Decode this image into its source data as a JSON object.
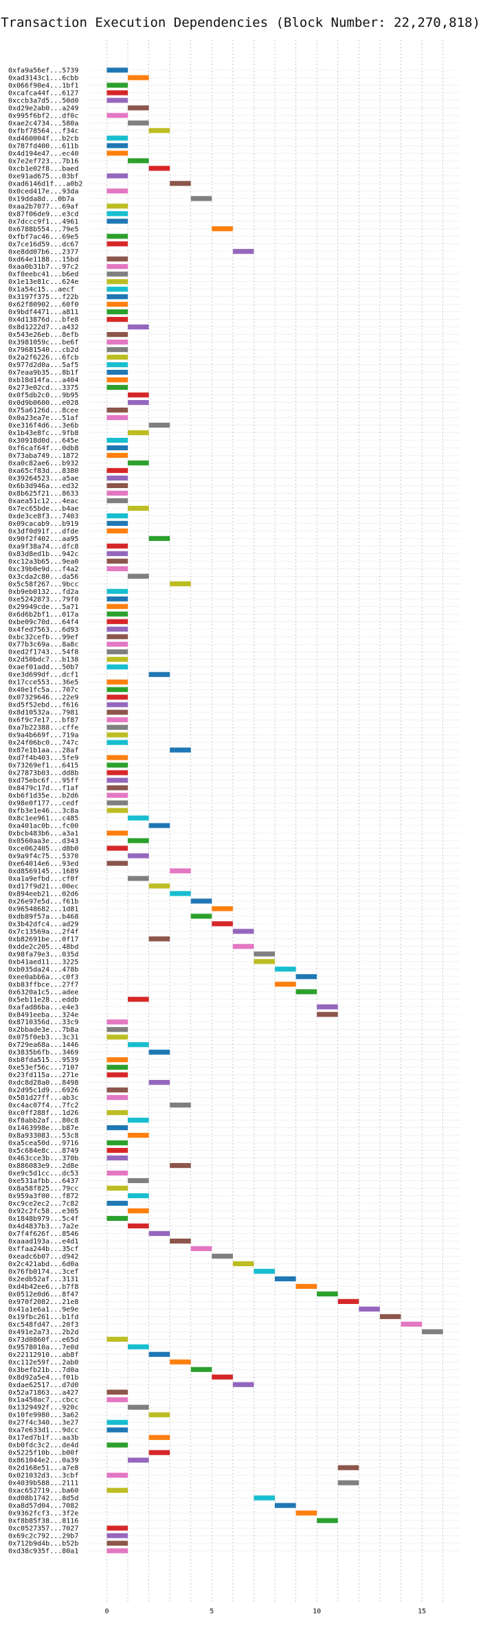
{
  "chart_data": {
    "type": "gantt",
    "title": "Transaction Execution Dependencies (Block Number: 22,270,818)",
    "xlabel": "",
    "ylabel": "",
    "xlim": [
      -0.8,
      16.8
    ],
    "xticks": [
      0,
      5,
      10,
      15
    ],
    "grid": true,
    "palette": [
      "#1f77b4",
      "#ff7f0e",
      "#2ca02c",
      "#d62728",
      "#9467bd",
      "#8c564b",
      "#e377c2",
      "#7f7f7f",
      "#bcbd22",
      "#17becf"
    ],
    "transactions": [
      {
        "tx": "0xfa9a56ef...5739",
        "start": 0
      },
      {
        "tx": "0xad3143c1...6cbb",
        "start": 1
      },
      {
        "tx": "0x066f90e4...1bf1",
        "start": 0
      },
      {
        "tx": "0xcafca44f...6127",
        "start": 0
      },
      {
        "tx": "0xccb3a7d5...50d0",
        "start": 0
      },
      {
        "tx": "0xd29e2ab0...a249",
        "start": 1
      },
      {
        "tx": "0x995f6bf2...df0c",
        "start": 0
      },
      {
        "tx": "0xae2c4734...580a",
        "start": 1
      },
      {
        "tx": "0xfbf78564...f34c",
        "start": 2
      },
      {
        "tx": "0xd460004f...b2cb",
        "start": 0
      },
      {
        "tx": "0x787fd400...611b",
        "start": 0
      },
      {
        "tx": "0x4d194e47...ec40",
        "start": 0
      },
      {
        "tx": "0x7e2ef723...7b16",
        "start": 1
      },
      {
        "tx": "0xcb1e02f8...baed",
        "start": 2
      },
      {
        "tx": "0xe91ad675...03bf",
        "start": 0
      },
      {
        "tx": "0xad6146d1f...a0b2",
        "start": 3
      },
      {
        "tx": "0x0ced417e...93da",
        "start": 0
      },
      {
        "tx": "0x19dda8d...0b7a",
        "start": 4
      },
      {
        "tx": "0xaa2b7077...69af",
        "start": 0
      },
      {
        "tx": "0x87f06de9...e3cd",
        "start": 0
      },
      {
        "tx": "0x7dccc9f1...4961",
        "start": 0
      },
      {
        "tx": "0x6788b554...79e5",
        "start": 5
      },
      {
        "tx": "0xfbf7ac46...69e5",
        "start": 0
      },
      {
        "tx": "0x7ce16d59...dc67",
        "start": 0
      },
      {
        "tx": "0xe8dd07b6...2377",
        "start": 6
      },
      {
        "tx": "0xd64e1188...15bd",
        "start": 0
      },
      {
        "tx": "0xaa0b31b7...97c2",
        "start": 0
      },
      {
        "tx": "0xf0eebc41...b6ed",
        "start": 0
      },
      {
        "tx": "0x1e13e81c...624e",
        "start": 0
      },
      {
        "tx": "0x1a54c15...aecf",
        "start": 0
      },
      {
        "tx": "0x3197f375...f22b",
        "start": 0
      },
      {
        "tx": "0x62f80902...60f0",
        "start": 0
      },
      {
        "tx": "0x9bdf4471...a811",
        "start": 0
      },
      {
        "tx": "0x4d13876d...bfe8",
        "start": 0
      },
      {
        "tx": "0x8d1222d7...a432",
        "start": 1
      },
      {
        "tx": "0x543e26eb...8efb",
        "start": 0
      },
      {
        "tx": "0x3981059c...be6f",
        "start": 0
      },
      {
        "tx": "0x79681540...cb2d",
        "start": 0
      },
      {
        "tx": "0x2a2f6226...6fcb",
        "start": 0
      },
      {
        "tx": "0x977d2d0a...5af5",
        "start": 0
      },
      {
        "tx": "0x7eaa9b35...8b1f",
        "start": 0
      },
      {
        "tx": "0xb18d14fa...a404",
        "start": 0
      },
      {
        "tx": "0x273e02cd...3375",
        "start": 0
      },
      {
        "tx": "0x0f5db2c0...9b95",
        "start": 1
      },
      {
        "tx": "0x0d9b0600...e028",
        "start": 1
      },
      {
        "tx": "0x75a6126d...8cee",
        "start": 0
      },
      {
        "tx": "0x0a23ea7e...51af",
        "start": 0
      },
      {
        "tx": "0xe316f4d6...3e6b",
        "start": 2
      },
      {
        "tx": "0x1b43e8fc...9fb8",
        "start": 1
      },
      {
        "tx": "0x30918d0d...645e",
        "start": 0
      },
      {
        "tx": "0xf6caf64f...0db8",
        "start": 0
      },
      {
        "tx": "0x73aba749...1872",
        "start": 0
      },
      {
        "tx": "0xa0c82ae6...b932",
        "start": 1
      },
      {
        "tx": "0xa65cf83d...8380",
        "start": 0
      },
      {
        "tx": "0x39264523...a5ae",
        "start": 0
      },
      {
        "tx": "0x6b3d946a...ed32",
        "start": 0
      },
      {
        "tx": "0x8b625f21...8633",
        "start": 0
      },
      {
        "tx": "0xaea51c12...4eac",
        "start": 0
      },
      {
        "tx": "0x7ec65bde...b4ae",
        "start": 1
      },
      {
        "tx": "0xde3ce8f3...7403",
        "start": 0
      },
      {
        "tx": "0x09cacab9...b919",
        "start": 0
      },
      {
        "tx": "0x3df0d91f...dfde",
        "start": 0
      },
      {
        "tx": "0x90f2f402...aa95",
        "start": 2
      },
      {
        "tx": "0xa9f38a74...dfc8",
        "start": 0
      },
      {
        "tx": "0x83d8ed1b...942c",
        "start": 0
      },
      {
        "tx": "0xc12a3b65...9ea0",
        "start": 0
      },
      {
        "tx": "0xc39b0e9d...f4a2",
        "start": 0
      },
      {
        "tx": "0x3cda2c80...da56",
        "start": 1
      },
      {
        "tx": "0x5c58f267...9bcc",
        "start": 3
      },
      {
        "tx": "0xb9eb0132...fd2a",
        "start": 0
      },
      {
        "tx": "0xe5242873...79f0",
        "start": 0
      },
      {
        "tx": "0x29949cde...5a71",
        "start": 0
      },
      {
        "tx": "0x6d6b2bf1...017a",
        "start": 0
      },
      {
        "tx": "0xbe09c70d...64f4",
        "start": 0
      },
      {
        "tx": "0x4fed7563...6d93",
        "start": 0
      },
      {
        "tx": "0xbc32cefb...99ef",
        "start": 0
      },
      {
        "tx": "0x77b3c69a...8a8c",
        "start": 0
      },
      {
        "tx": "0xed2f1743...54f8",
        "start": 0
      },
      {
        "tx": "0x2d50bdc7...b138",
        "start": 0
      },
      {
        "tx": "0xaef01add...50b7",
        "start": 0
      },
      {
        "tx": "0xe3d699df...dcf1",
        "start": 2
      },
      {
        "tx": "0x17cce553...36e5",
        "start": 0
      },
      {
        "tx": "0x40e1fc5a...707c",
        "start": 0
      },
      {
        "tx": "0x07329646...22e9",
        "start": 0
      },
      {
        "tx": "0xd5f52ebd...f616",
        "start": 0
      },
      {
        "tx": "0x8d10532a...7981",
        "start": 0
      },
      {
        "tx": "0x6f9c7e17...bf87",
        "start": 0
      },
      {
        "tx": "0xa7b22388...cffe",
        "start": 0
      },
      {
        "tx": "0x9a4b669f...719a",
        "start": 0
      },
      {
        "tx": "0x24f06bc0...747c",
        "start": 0
      },
      {
        "tx": "0x87e1b1aa...28af",
        "start": 3
      },
      {
        "tx": "0xd7f4b403...5fe9",
        "start": 0
      },
      {
        "tx": "0x73269ef1...6415",
        "start": 0
      },
      {
        "tx": "0x27873b03...dd8b",
        "start": 0
      },
      {
        "tx": "0xd75ebc6f...95ff",
        "start": 0
      },
      {
        "tx": "0x8479c17d...f1af",
        "start": 0
      },
      {
        "tx": "0xb6f1d35e...b2d6",
        "start": 0
      },
      {
        "tx": "0x98e0f177...cedf",
        "start": 0
      },
      {
        "tx": "0xfb3e1e46...3c8a",
        "start": 0
      },
      {
        "tx": "0x8c1ee961...c485",
        "start": 1
      },
      {
        "tx": "0xa401ac0b...fc00",
        "start": 2
      },
      {
        "tx": "0xbcb483b6...a3a1",
        "start": 0
      },
      {
        "tx": "0x0560aa3e...d343",
        "start": 1
      },
      {
        "tx": "0xce062405...d8b0",
        "start": 0
      },
      {
        "tx": "0x9a9f4c75...5370",
        "start": 1
      },
      {
        "tx": "0xe64014e6...93ed",
        "start": 0
      },
      {
        "tx": "0xd8569145...1689",
        "start": 3
      },
      {
        "tx": "0xa1a9efbd...cf0f",
        "start": 1
      },
      {
        "tx": "0xd17f9d21...00ec",
        "start": 2
      },
      {
        "tx": "0x894eeb21...02d6",
        "start": 3
      },
      {
        "tx": "0x26e97e5d...f61b",
        "start": 4
      },
      {
        "tx": "0x96548682...1d81",
        "start": 5
      },
      {
        "tx": "0xdb89f57a...b468",
        "start": 4
      },
      {
        "tx": "0x3b42dfc4...ad29",
        "start": 5
      },
      {
        "tx": "0x7c13569a...2f4f",
        "start": 6
      },
      {
        "tx": "0xb82691be...0f17",
        "start": 2
      },
      {
        "tx": "0xdde2c205...48bd",
        "start": 6
      },
      {
        "tx": "0x98fa79e3...035d",
        "start": 7
      },
      {
        "tx": "0xb41aed11...3225",
        "start": 7
      },
      {
        "tx": "0xb035da24...478b",
        "start": 8
      },
      {
        "tx": "0xee0abb6a...c0f3",
        "start": 9
      },
      {
        "tx": "0xb83ffbce...27f7",
        "start": 8
      },
      {
        "tx": "0x6320a1c5...adee",
        "start": 9
      },
      {
        "tx": "0x5eb11e28...eddb",
        "start": 1
      },
      {
        "tx": "0xafad86ba...e4e3",
        "start": 10
      },
      {
        "tx": "0x8491eeba...324e",
        "start": 10
      },
      {
        "tx": "0x8710356d...33c9",
        "start": 0
      },
      {
        "tx": "0x2bbade3e...7b8a",
        "start": 0
      },
      {
        "tx": "0x075f0eb3...3c31",
        "start": 0
      },
      {
        "tx": "0x729ea68a...1446",
        "start": 1
      },
      {
        "tx": "0x3835b6fb...3469",
        "start": 2
      },
      {
        "tx": "0xb8fda515...9539",
        "start": 0
      },
      {
        "tx": "0xe53ef56c...7107",
        "start": 0
      },
      {
        "tx": "0x23fd115a...271e",
        "start": 0
      },
      {
        "tx": "0xdc8d28a0...8498",
        "start": 2
      },
      {
        "tx": "0x2d95c1d9...6926",
        "start": 0
      },
      {
        "tx": "0x581d27ff...ab3c",
        "start": 0
      },
      {
        "tx": "0xc4ac07f4...7fc2",
        "start": 3
      },
      {
        "tx": "0xc0ff288f...1d26",
        "start": 0
      },
      {
        "tx": "0xf8abb2af...80c8",
        "start": 1
      },
      {
        "tx": "0x1463998e...b87e",
        "start": 0
      },
      {
        "tx": "0x8a933083...53c8",
        "start": 1
      },
      {
        "tx": "0xa5cea50d...9716",
        "start": 0
      },
      {
        "tx": "0x5c684e8c...8749",
        "start": 0
      },
      {
        "tx": "0x463cce3b...370b",
        "start": 0
      },
      {
        "tx": "0x886083e9...2d8e",
        "start": 3
      },
      {
        "tx": "0xe9c5d1cc...dc53",
        "start": 0
      },
      {
        "tx": "0xe531afbb...6437",
        "start": 1
      },
      {
        "tx": "0x8a58f825...79cc",
        "start": 0
      },
      {
        "tx": "0x959a3f00...f872",
        "start": 1
      },
      {
        "tx": "0xc9ce2ec2...7c82",
        "start": 0
      },
      {
        "tx": "0x92c2fc58...e305",
        "start": 1
      },
      {
        "tx": "0x1848b979...5c4f",
        "start": 0
      },
      {
        "tx": "0x4d4837b3...7a2e",
        "start": 1
      },
      {
        "tx": "0x7f4f626f...8546",
        "start": 2
      },
      {
        "tx": "0xaaad193a...e4d1",
        "start": 3
      },
      {
        "tx": "0xffaa244b...35cf",
        "start": 4
      },
      {
        "tx": "0xeadc6b07...d942",
        "start": 5
      },
      {
        "tx": "0x2c421abd...6d0a",
        "start": 6
      },
      {
        "tx": "0x76fb0174...3cef",
        "start": 7
      },
      {
        "tx": "0x2edb52af...3131",
        "start": 8
      },
      {
        "tx": "0xd4b42ee6...b7f8",
        "start": 9
      },
      {
        "tx": "0x0512e0d6...8f47",
        "start": 10
      },
      {
        "tx": "0x970f2082...21e8",
        "start": 11
      },
      {
        "tx": "0x41a1e6a1...9e9e",
        "start": 12
      },
      {
        "tx": "0x19fbc261...b1fd",
        "start": 13
      },
      {
        "tx": "0xc548fd47...20f3",
        "start": 14
      },
      {
        "tx": "0x491e2a73...2b2d",
        "start": 15
      },
      {
        "tx": "0x73d0860f...e65d",
        "start": 0
      },
      {
        "tx": "0x9578010a...7e0d",
        "start": 1
      },
      {
        "tx": "0x22112910...ab8f",
        "start": 2
      },
      {
        "tx": "0xc112e59f...2ab0",
        "start": 3
      },
      {
        "tx": "0x3befb21b...7d0a",
        "start": 4
      },
      {
        "tx": "0x8d92a5e4...f01b",
        "start": 5
      },
      {
        "tx": "0xdae62517...d7d0",
        "start": 6
      },
      {
        "tx": "0x52a71863...a427",
        "start": 0
      },
      {
        "tx": "0x1a450ac7...cbcc",
        "start": 0
      },
      {
        "tx": "0x1329492f...920c",
        "start": 1
      },
      {
        "tx": "0x10fe9980...3a62",
        "start": 2
      },
      {
        "tx": "0x27f4c340...3e27",
        "start": 0
      },
      {
        "tx": "0xa7e633d1...9dcc",
        "start": 0
      },
      {
        "tx": "0x17ed7b1f...aa3b",
        "start": 2
      },
      {
        "tx": "0xb0fdc3c2...de4d",
        "start": 0
      },
      {
        "tx": "0x5225f10b...b00f",
        "start": 2
      },
      {
        "tx": "0x861044e2...0a39",
        "start": 1
      },
      {
        "tx": "0x2d168e51...a7e8",
        "start": 11
      },
      {
        "tx": "0x021032d3...3cbf",
        "start": 0
      },
      {
        "tx": "0x4039b588...2111",
        "start": 11
      },
      {
        "tx": "0xac652719...ba60",
        "start": 0
      },
      {
        "tx": "0xd08b1742...8d5d",
        "start": 7
      },
      {
        "tx": "0xa8d57d04...7082",
        "start": 8
      },
      {
        "tx": "0x9362fcf3...3f2e",
        "start": 9
      },
      {
        "tx": "0xf8b85f38...8116",
        "start": 10
      },
      {
        "tx": "0xc0527357...7027",
        "start": 0
      },
      {
        "tx": "0x69c2c792...29b7",
        "start": 0
      },
      {
        "tx": "0x712b9d4b...b52b",
        "start": 0
      },
      {
        "tx": "0xd38c935f...80a1",
        "start": 0
      }
    ]
  }
}
